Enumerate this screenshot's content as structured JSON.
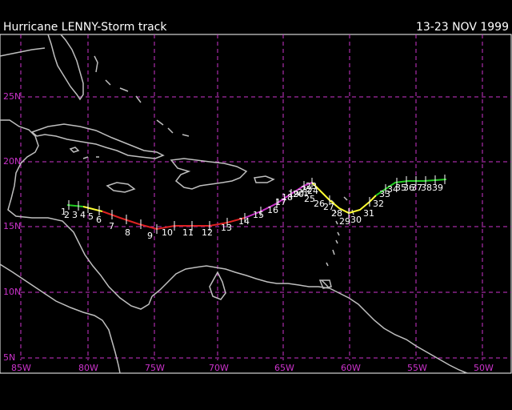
{
  "header": {
    "title": "Hurricane LENNY-Storm track",
    "date_range": "13-23 NOV 1999"
  },
  "axes": {
    "lon_labels": [
      "85W",
      "80W",
      "75W",
      "70W",
      "65W",
      "60W",
      "55W",
      "50W"
    ],
    "lat_labels": [
      "25N",
      "20N",
      "15N",
      "10N",
      "5N"
    ]
  },
  "colors": {
    "grid": "#cc33cc",
    "land": "#bfbfbf",
    "frame": "#ffffff",
    "track_segments": [
      "#22cc22",
      "#ffff33",
      "#dd2222",
      "#cc33cc",
      "#ffff33",
      "#22cc22"
    ]
  },
  "track_labels": [
    "1",
    "2",
    "3",
    "4",
    "5",
    "6",
    "7",
    "8",
    "9",
    "10",
    "11",
    "12",
    "13",
    "14",
    "15",
    "16",
    "17",
    "18",
    "19",
    "20",
    "21",
    "22",
    "23",
    "24",
    "25",
    "26",
    "27",
    "28",
    "29",
    "30",
    "31",
    "32",
    "33",
    "34",
    "35",
    "36",
    "37",
    "38",
    "39"
  ]
}
